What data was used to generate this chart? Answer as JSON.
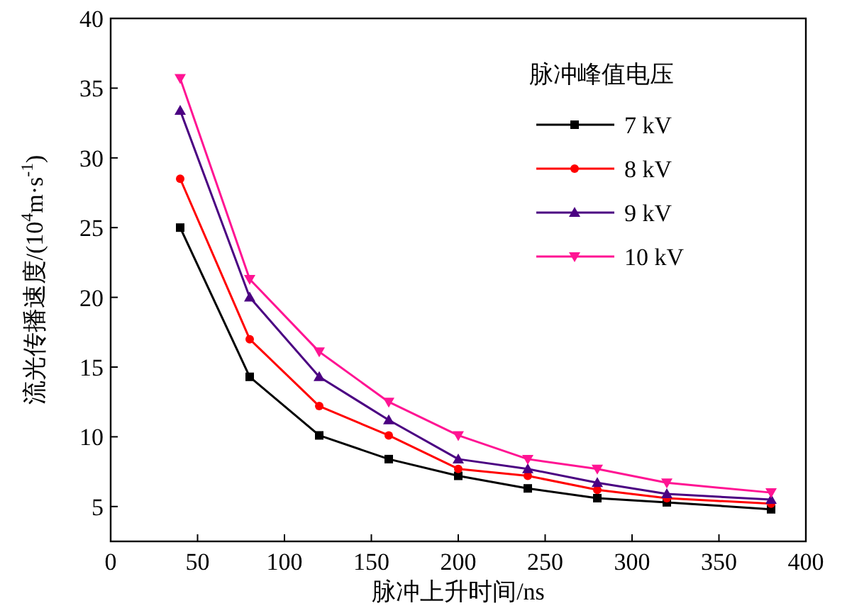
{
  "chart_data": {
    "type": "line",
    "xlabel": "脉冲上升时间/ns",
    "ylabel": "流光传播速度/(10$^{4}$m·s$^{-1}$)",
    "legend_title": "脉冲峰值电压",
    "x": [
      40,
      80,
      120,
      160,
      200,
      240,
      280,
      320,
      380
    ],
    "series": [
      {
        "name": "7 kV",
        "color": "#000000",
        "marker": "square",
        "values": [
          25,
          14.3,
          10.1,
          8.4,
          7.2,
          6.3,
          5.6,
          5.3,
          4.8
        ]
      },
      {
        "name": "8 kV",
        "color": "#ff0000",
        "marker": "circle",
        "values": [
          28.5,
          17,
          12.2,
          10.1,
          7.7,
          7.2,
          6.2,
          5.6,
          5.2
        ]
      },
      {
        "name": "9 kV",
        "color": "#4b0082",
        "marker": "triangle",
        "values": [
          33.4,
          20,
          14.3,
          11.2,
          8.4,
          7.7,
          6.7,
          5.9,
          5.5
        ]
      },
      {
        "name": "10 kV",
        "color": "#ff1493",
        "marker": "triangle-down",
        "values": [
          35.7,
          21.3,
          16.1,
          12.5,
          10.1,
          8.4,
          7.7,
          6.7,
          6.0
        ]
      }
    ],
    "xlim": [
      0,
      400
    ],
    "ylim": [
      2.5,
      40
    ],
    "xticks": [
      0,
      50,
      100,
      150,
      200,
      250,
      300,
      350,
      400
    ],
    "yticks": [
      5,
      10,
      15,
      20,
      25,
      30,
      35,
      40
    ],
    "grid": false,
    "legend": "top right",
    "line_style": "solid"
  }
}
